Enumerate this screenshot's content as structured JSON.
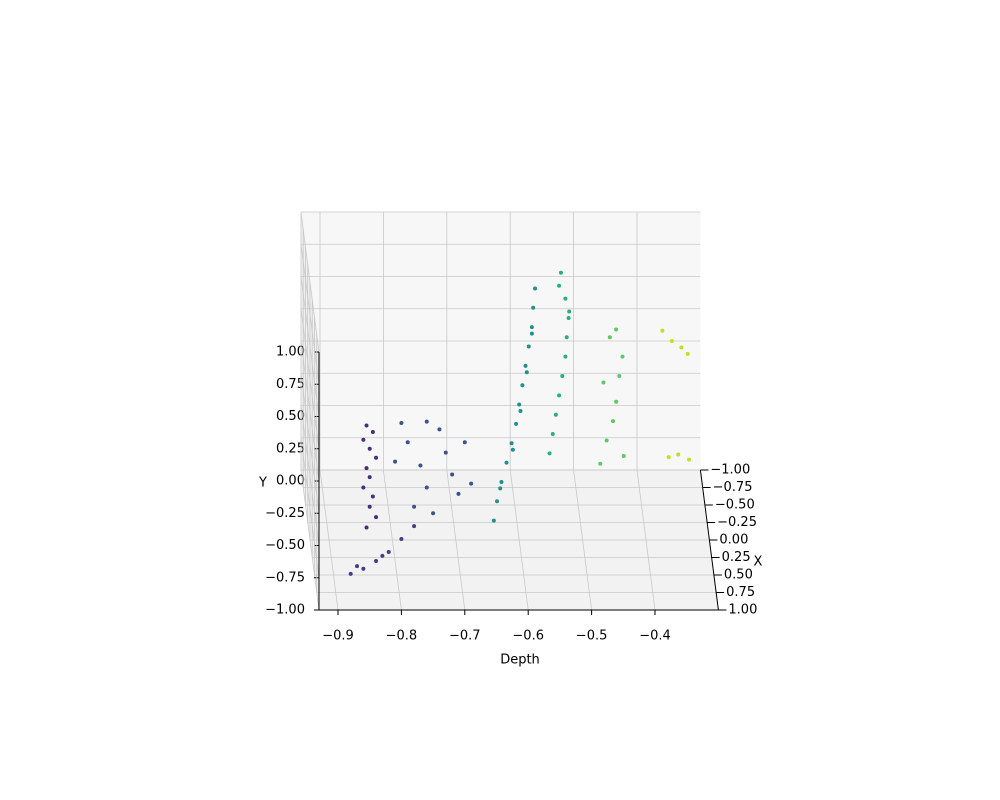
{
  "chart_data": {
    "type": "scatter3d",
    "xlabel": "Depth",
    "ylabel": "Y",
    "zlabel": "X",
    "xlim": [
      -0.93,
      -0.3
    ],
    "ylim": [
      -1,
      1
    ],
    "zlim": [
      -1,
      1
    ],
    "xticks": [
      {
        "value": -0.9,
        "label": "−0.9"
      },
      {
        "value": -0.8,
        "label": "−0.8"
      },
      {
        "value": -0.7,
        "label": "−0.7"
      },
      {
        "value": -0.6,
        "label": "−0.6"
      },
      {
        "value": -0.5,
        "label": "−0.5"
      },
      {
        "value": -0.4,
        "label": "−0.4"
      }
    ],
    "yticks": [
      {
        "value": -1,
        "label": "−1.00"
      },
      {
        "value": -0.75,
        "label": "−0.75"
      },
      {
        "value": -0.5,
        "label": "−0.50"
      },
      {
        "value": -0.25,
        "label": "−0.25"
      },
      {
        "value": 0,
        "label": "0.00"
      },
      0.25,
      {
        "value": 0.5,
        "label": "0.50"
      },
      0.75,
      {
        "value": 1,
        "label": "1.00"
      }
    ],
    "zticks": [
      {
        "value": -1,
        "label": "−1.00"
      },
      {
        "value": -0.75,
        "label": "−0.75"
      },
      {
        "value": -0.5,
        "label": "−0.50"
      },
      {
        "value": -0.25,
        "label": "−0.25"
      },
      {
        "value": 0,
        "label": "0.00"
      },
      0.25,
      {
        "value": 0.5,
        "label": "0.50"
      },
      0.75,
      {
        "value": 1,
        "label": "1.00"
      }
    ],
    "grid": true,
    "series": [
      {
        "color": "#472d7b",
        "depth": [
          -0.855,
          -0.845,
          -0.86,
          -0.85,
          -0.84,
          -0.855,
          -0.85,
          -0.86,
          -0.845,
          -0.85,
          -0.84,
          -0.855
        ],
        "y": [
          0.43,
          0.38,
          0.32,
          0.25,
          0.18,
          0.1,
          0.03,
          -0.05,
          -0.12,
          -0.2,
          -0.28,
          -0.36
        ],
        "x": [
          1,
          1,
          1,
          1,
          1,
          1,
          1,
          1,
          1,
          1,
          1,
          1
        ]
      },
      {
        "color": "#433e85",
        "depth": [
          -0.88,
          -0.86,
          -0.84,
          -0.82,
          -0.8,
          -0.78,
          -0.87,
          -0.83
        ],
        "y": [
          -0.72,
          -0.68,
          -0.62,
          -0.55,
          -0.45,
          -0.35,
          -0.66,
          -0.58
        ],
        "x": [
          1,
          1,
          1,
          1,
          1,
          1,
          1,
          1
        ]
      },
      {
        "color": "#3b528b",
        "depth": [
          -0.8,
          -0.79,
          -0.77,
          -0.76,
          -0.74,
          -0.73,
          -0.72,
          -0.71,
          -0.78,
          -0.75,
          -0.7,
          -0.69,
          -0.81,
          -0.76
        ],
        "y": [
          0.45,
          0.3,
          0.12,
          -0.05,
          0.4,
          0.22,
          0.05,
          -0.1,
          -0.2,
          -0.25,
          0.3,
          -0.02,
          0.15,
          0.46
        ],
        "x": [
          1,
          1,
          1,
          1,
          1,
          1,
          1,
          1,
          1,
          1,
          1,
          1,
          1,
          1
        ]
      },
      {
        "color": "#21918c",
        "depth": [
          -0.64,
          -0.635,
          -0.628,
          -0.62,
          -0.612,
          -0.605,
          -0.6,
          -0.595,
          -0.59,
          -0.585,
          -0.58,
          -0.578,
          -0.575,
          -0.63,
          -0.61,
          -0.598,
          -0.588,
          -0.58
        ],
        "y": [
          -0.85,
          -0.7,
          -0.55,
          -0.4,
          -0.25,
          -0.1,
          0.05,
          0.2,
          0.35,
          0.5,
          0.65,
          0.8,
          0.95,
          -0.6,
          -0.3,
          0.0,
          0.3,
          0.6
        ],
        "x": [
          0,
          0,
          0,
          0,
          0,
          0,
          0,
          0,
          0,
          0,
          0,
          0,
          0,
          0,
          0,
          0,
          0,
          0
        ]
      },
      {
        "color": "#2ab07f",
        "depth": [
          -0.545,
          -0.54,
          -0.535,
          -0.53,
          -0.525,
          -0.52,
          -0.518,
          -0.515,
          -0.52,
          -0.53,
          -0.527,
          -0.514
        ],
        "y": [
          -0.6,
          -0.45,
          -0.3,
          -0.15,
          0.0,
          0.15,
          0.3,
          0.45,
          0.6,
          0.7,
          0.8,
          0.5
        ],
        "x": [
          -0.5,
          -0.5,
          -0.5,
          -0.5,
          -0.5,
          -0.5,
          -0.5,
          -0.5,
          -0.5,
          -0.5,
          -0.5,
          -0.5
        ]
      },
      {
        "color": "#5ec962",
        "depth": [
          -0.465,
          -0.455,
          -0.445,
          -0.44,
          -0.435,
          -0.43,
          -0.45,
          -0.44,
          -0.46,
          -0.428
        ],
        "y": [
          -0.68,
          -0.5,
          -0.35,
          -0.2,
          0.0,
          0.15,
          0.3,
          0.36,
          -0.05,
          -0.62
        ],
        "x": [
          -0.5,
          -0.5,
          -0.5,
          -0.5,
          -0.5,
          -0.5,
          -0.5,
          -0.5,
          -0.5,
          -0.5
        ]
      },
      {
        "color": "#c2df23",
        "depth": [
          -0.36,
          -0.345,
          -0.33,
          -0.32,
          -0.35,
          -0.335,
          -0.318
        ],
        "y": [
          0.08,
          0.0,
          -0.05,
          -0.1,
          -0.9,
          -0.88,
          -0.92
        ],
        "x": [
          -1,
          -1,
          -1,
          -1,
          -1,
          -1,
          -1
        ]
      }
    ]
  }
}
